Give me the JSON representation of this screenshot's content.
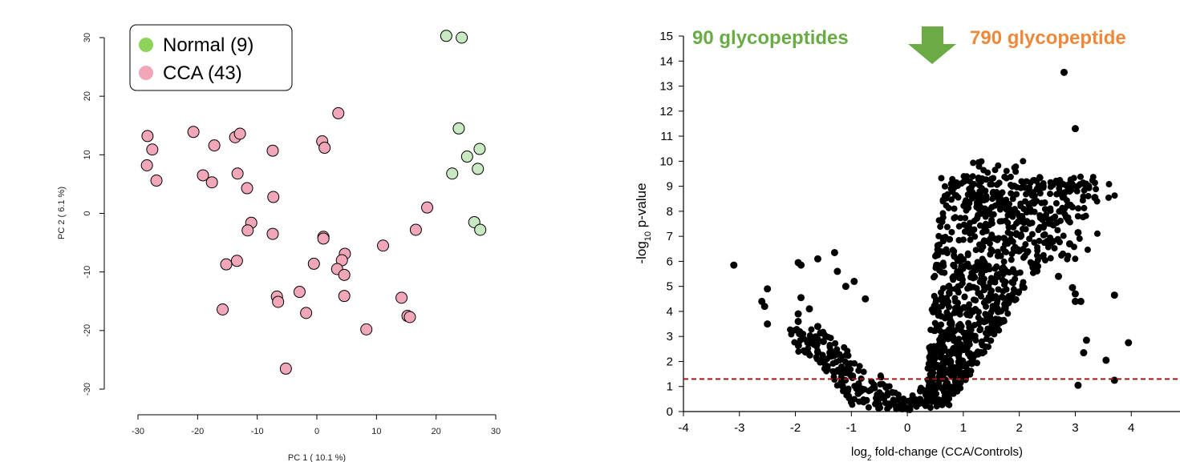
{
  "chart_data": [
    {
      "type": "scatter",
      "xlabel": "PC 1 ( 10.1 %)",
      "ylabel": "PC 2 ( 6.1 %)",
      "xlim": [
        -30,
        30
      ],
      "ylim": [
        -30,
        30
      ],
      "x_ticks": [
        "-30",
        "-20",
        "-10",
        "0",
        "10",
        "20",
        "30"
      ],
      "y_ticks": [
        "-30",
        "-20",
        "-10",
        "0",
        "10",
        "20",
        "30"
      ],
      "legend_placement": "top-left",
      "series": [
        {
          "name": "Normal (9)",
          "color": "#8fd45a",
          "marker_fill": "#c8e9c2",
          "points": [
            [
              21.7,
              30.3
            ],
            [
              24.3,
              30.0
            ],
            [
              23.8,
              14.5
            ],
            [
              25.2,
              9.7
            ],
            [
              27.3,
              11.0
            ],
            [
              22.7,
              6.8
            ],
            [
              27.0,
              7.6
            ],
            [
              26.4,
              -1.5
            ],
            [
              27.4,
              -2.8
            ]
          ]
        },
        {
          "name": "CCA (43)",
          "color": "#f2a7b8",
          "marker_fill": "#f2a7b8",
          "points": [
            [
              -28.4,
              13.2
            ],
            [
              -27.6,
              10.9
            ],
            [
              -28.5,
              8.2
            ],
            [
              -26.9,
              5.6
            ],
            [
              -20.7,
              13.9
            ],
            [
              -17.2,
              11.6
            ],
            [
              -13.7,
              13.0
            ],
            [
              -12.9,
              13.6
            ],
            [
              -7.4,
              10.7
            ],
            [
              0.9,
              12.3
            ],
            [
              1.3,
              11.2
            ],
            [
              3.6,
              17.1
            ],
            [
              -19.1,
              6.5
            ],
            [
              -17.6,
              5.3
            ],
            [
              -13.3,
              6.8
            ],
            [
              -11.7,
              4.3
            ],
            [
              -7.3,
              2.8
            ],
            [
              -11.0,
              -1.6
            ],
            [
              -11.6,
              -2.9
            ],
            [
              -7.4,
              -3.5
            ],
            [
              1.1,
              -4.0
            ],
            [
              1.1,
              -4.3
            ],
            [
              18.5,
              1.0
            ],
            [
              16.6,
              -2.8
            ],
            [
              11.1,
              -5.5
            ],
            [
              4.7,
              -6.9
            ],
            [
              4.2,
              -8.0
            ],
            [
              3.4,
              -9.5
            ],
            [
              4.6,
              -10.5
            ],
            [
              -0.5,
              -8.6
            ],
            [
              -13.4,
              -8.1
            ],
            [
              -15.2,
              -8.7
            ],
            [
              -6.7,
              -14.2
            ],
            [
              -6.5,
              -15.1
            ],
            [
              -2.9,
              -13.4
            ],
            [
              4.6,
              -14.1
            ],
            [
              14.2,
              -14.4
            ],
            [
              -15.8,
              -16.4
            ],
            [
              -1.8,
              -17.0
            ],
            [
              15.2,
              -17.5
            ],
            [
              15.6,
              -17.7
            ],
            [
              8.3,
              -19.8
            ],
            [
              -5.2,
              -26.5
            ]
          ]
        }
      ]
    },
    {
      "type": "scatter",
      "xlabel": "log",
      "xlabel_sub": "2",
      "xlabel_rest": " fold-change (CCA/Controls)",
      "ylabel": "-log",
      "ylabel_sub": "10",
      "ylabel_rest": " p-value",
      "xlim": [
        -4,
        5
      ],
      "ylim": [
        0,
        15
      ],
      "x_ticks": [
        "-4",
        "-3",
        "-2",
        "-1",
        "0",
        "1",
        "2",
        "3",
        "4"
      ],
      "y_ticks": [
        "0",
        "1",
        "2",
        "3",
        "4",
        "5",
        "6",
        "7",
        "8",
        "9",
        "10",
        "11",
        "12",
        "13",
        "14",
        "15"
      ],
      "threshold_y": 1.3,
      "threshold_color": "#a01818",
      "annotations": {
        "left_label": "90 glycopeptides",
        "left_color": "#6aab45",
        "right_label": "790 glycopeptide",
        "right_color": "#f0883a",
        "arrow_color": "#6aab45"
      },
      "series": [
        {
          "color": "#000000",
          "outliers": [
            [
              -3.1,
              5.85
            ],
            [
              -2.6,
              4.4
            ],
            [
              -2.5,
              4.9
            ],
            [
              -2.55,
              4.2
            ],
            [
              -2.5,
              3.5
            ],
            [
              -1.95,
              5.95
            ],
            [
              -1.9,
              5.85
            ],
            [
              -1.6,
              6.1
            ],
            [
              -1.9,
              4.55
            ],
            [
              -1.95,
              3.6
            ],
            [
              -1.95,
              3.9
            ],
            [
              -1.9,
              3.1
            ],
            [
              -1.75,
              4.1
            ],
            [
              -1.3,
              6.35
            ],
            [
              -1.25,
              5.6
            ],
            [
              -0.95,
              5.2
            ],
            [
              -1.1,
              5.0
            ],
            [
              -0.75,
              4.5
            ],
            [
              -1.5,
              2.8
            ],
            [
              -1.6,
              3.4
            ],
            [
              2.8,
              13.55
            ],
            [
              3.0,
              11.3
            ],
            [
              3.35,
              8.55
            ],
            [
              3.05,
              7.15
            ],
            [
              2.9,
              6.7
            ],
            [
              2.95,
              4.95
            ],
            [
              3.0,
              4.7
            ],
            [
              3.0,
              4.4
            ],
            [
              3.1,
              4.4
            ],
            [
              3.2,
              2.85
            ],
            [
              3.15,
              2.35
            ],
            [
              3.7,
              4.65
            ],
            [
              3.95,
              2.75
            ],
            [
              3.55,
              2.05
            ],
            [
              3.7,
              1.25
            ],
            [
              3.05,
              1.05
            ],
            [
              2.6,
              6.8
            ],
            [
              2.7,
              5.4
            ]
          ]
        }
      ]
    }
  ]
}
